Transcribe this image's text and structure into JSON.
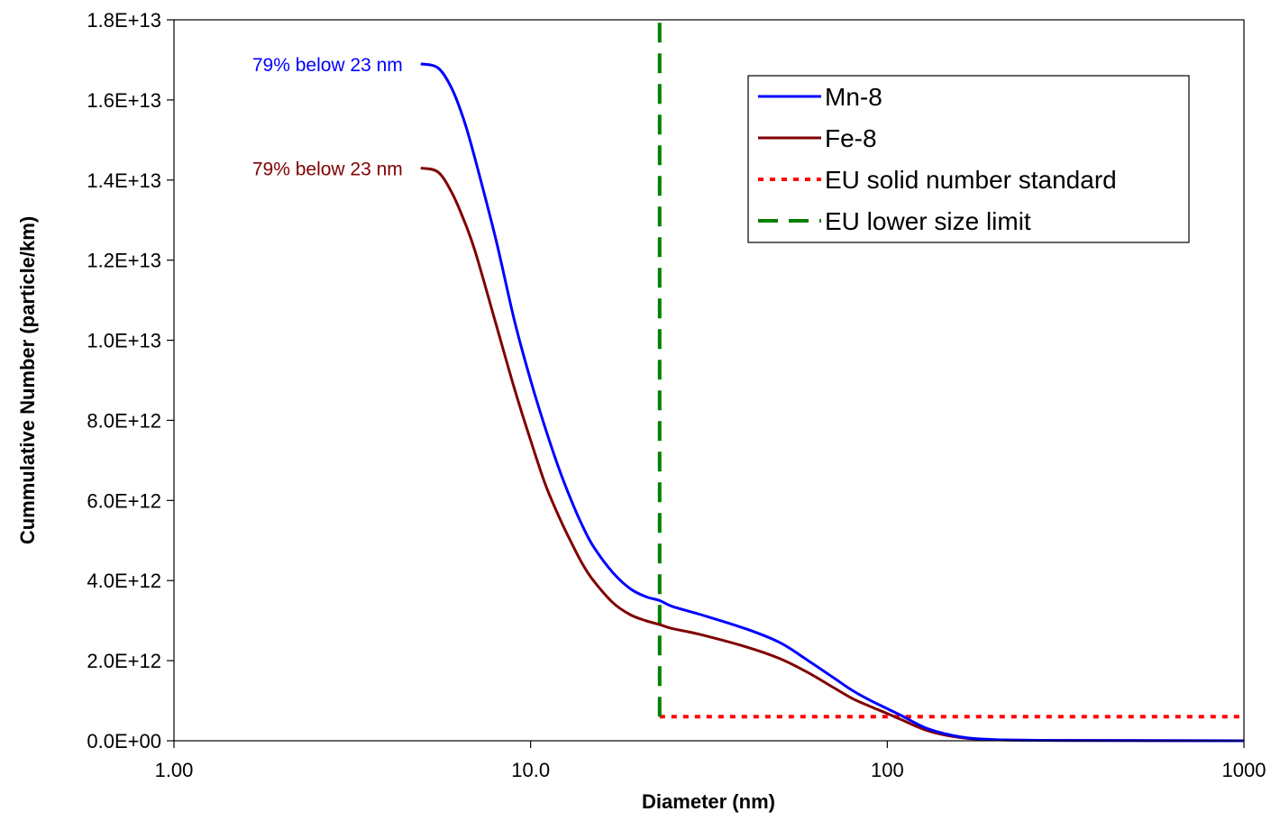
{
  "chart_data": {
    "type": "line",
    "title": "",
    "xlabel": "Diameter (nm)",
    "ylabel": "Cummulative Number (particle/km)",
    "xscale": "log",
    "xlim": [
      1,
      1000
    ],
    "ylim": [
      0,
      18000000000000
    ],
    "x_tick_labels": [
      "1.00",
      "10.0",
      "100",
      "1000"
    ],
    "y_tick_labels": [
      "0.0E+00",
      "2.0E+12",
      "4.0E+12",
      "6.0E+12",
      "8.0E+12",
      "1.0E+13",
      "1.2E+13",
      "1.4E+13",
      "1.6E+13",
      "1.8E+13"
    ],
    "grid": false,
    "legend_position": "top-right",
    "series": [
      {
        "name": "Mn-8",
        "color": "#0000ff",
        "style": "solid",
        "x": [
          4.92,
          5.5,
          6.0,
          6.5,
          7.0,
          8.0,
          9.0,
          10.0,
          11.0,
          12.0,
          13.0,
          14.0,
          15.0,
          17.0,
          19.0,
          21.0,
          23.0,
          25.0,
          30.0,
          40.0,
          50.0,
          60.0,
          70.0,
          80.0,
          90.0,
          100.0,
          110.0,
          130.0,
          160.0,
          200.0,
          300.0,
          500.0,
          1000.0
        ],
        "y": [
          16900000000000,
          16800000000000,
          16300000000000,
          15500000000000,
          14500000000000,
          12500000000000,
          10500000000000,
          9000000000000,
          7800000000000,
          6800000000000,
          6000000000000,
          5350000000000,
          4850000000000,
          4200000000000,
          3800000000000,
          3600000000000,
          3500000000000,
          3350000000000,
          3150000000000,
          2800000000000,
          2450000000000,
          2000000000000,
          1600000000000,
          1250000000000,
          1000000000000,
          800000000000,
          620000000000,
          300000000000,
          100000000000,
          30000000000,
          10000000000,
          5000000000,
          1000000000
        ]
      },
      {
        "name": "Fe-8",
        "color": "#800000",
        "style": "solid",
        "x": [
          4.92,
          5.5,
          6.0,
          6.5,
          7.0,
          8.0,
          9.0,
          10.0,
          11.0,
          12.0,
          13.0,
          14.0,
          15.0,
          17.0,
          19.0,
          21.0,
          23.0,
          25.0,
          30.0,
          40.0,
          50.0,
          60.0,
          70.0,
          80.0,
          90.0,
          100.0,
          110.0,
          130.0,
          160.0,
          200.0,
          300.0,
          500.0,
          1000.0
        ],
        "y": [
          14300000000000,
          14200000000000,
          13700000000000,
          13000000000000,
          12200000000000,
          10400000000000,
          8800000000000,
          7500000000000,
          6400000000000,
          5600000000000,
          4950000000000,
          4400000000000,
          4000000000000,
          3450000000000,
          3150000000000,
          3000000000000,
          2900000000000,
          2800000000000,
          2650000000000,
          2350000000000,
          2050000000000,
          1700000000000,
          1350000000000,
          1050000000000,
          850000000000,
          680000000000,
          520000000000,
          250000000000,
          80000000000,
          25000000000,
          8000000000,
          4000000000,
          1000000000
        ]
      },
      {
        "name": "EU solid number standard",
        "color": "#ff0000",
        "style": "dotted",
        "x": [
          23,
          1000
        ],
        "y": [
          600000000000,
          600000000000
        ]
      },
      {
        "name": "EU lower size limit",
        "color": "#008000",
        "style": "dashed",
        "x": [
          23,
          23
        ],
        "y": [
          600000000000,
          18000000000000
        ]
      }
    ],
    "annotations": [
      {
        "text": "79% below 23 nm",
        "color": "#0000ff",
        "series": "Mn-8"
      },
      {
        "text": "79% below 23 nm",
        "color": "#800000",
        "series": "Fe-8"
      }
    ]
  }
}
